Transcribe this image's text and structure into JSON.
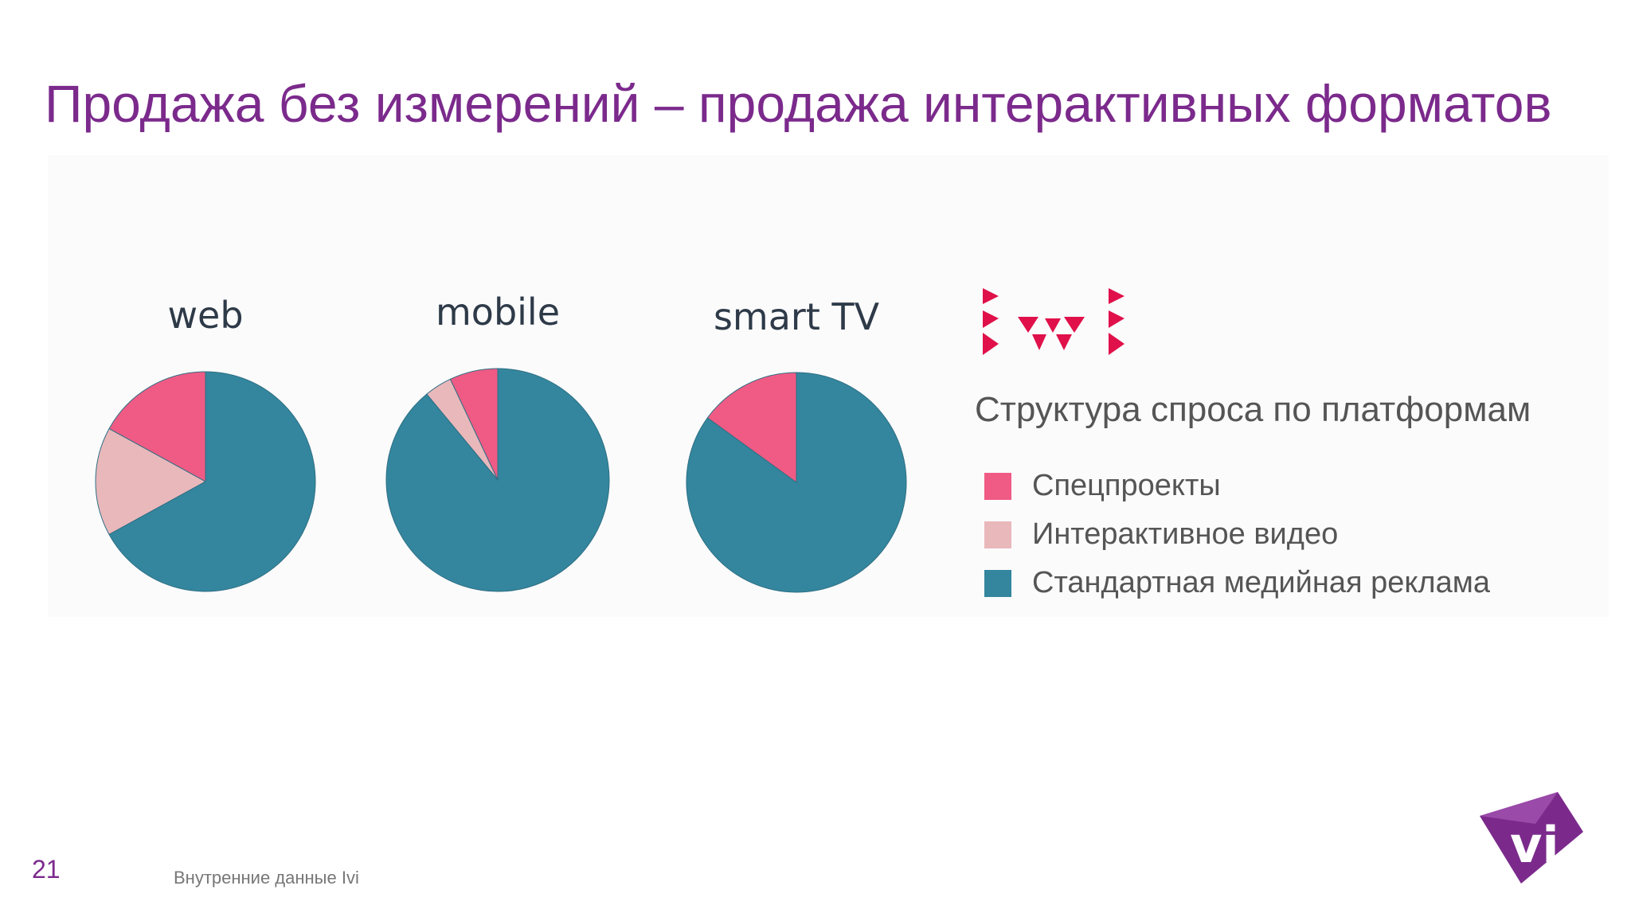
{
  "title": "Продажа без измерений – продажа интерактивных форматов",
  "page_number": "21",
  "source_note": "Внутренние данные Ivi",
  "colors": {
    "title": "#7b2a8c",
    "special": "#ef5b84",
    "interactive": "#e9b8bb",
    "standard": "#33869d"
  },
  "legend": {
    "title": "Структура спроса по платформам",
    "items": [
      {
        "label": "Спецпроекты",
        "color": "#ef5b84"
      },
      {
        "label": "Интерактивное видео",
        "color": "#e9b8bb"
      },
      {
        "label": "Стандартная медийная реклама",
        "color": "#33869d"
      }
    ]
  },
  "chart_data": {
    "type": "pie",
    "legend_placement": "right",
    "series_names": [
      "Спецпроекты",
      "Интерактивное видео",
      "Стандартная медийная реклама"
    ],
    "charts": [
      {
        "label": "web",
        "values": [
          17,
          16,
          67
        ]
      },
      {
        "label": "mobile",
        "values": [
          7,
          4,
          89
        ]
      },
      {
        "label": "smart TV",
        "values": [
          15,
          0,
          85
        ]
      }
    ]
  }
}
